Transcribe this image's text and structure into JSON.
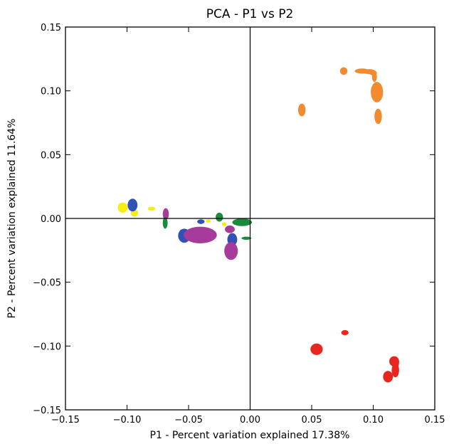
{
  "chart_data": {
    "type": "scatter",
    "title": "PCA - P1 vs P2",
    "xlabel": "P1 - Percent variation explained 17.38%",
    "ylabel": "P2 - Percent variation explained 11.64%",
    "xlim": [
      -0.15,
      0.15
    ],
    "ylim": [
      -0.15,
      0.15
    ],
    "x_ticks": [
      "−0.15",
      "−0.10",
      "−0.05",
      "0.00",
      "0.05",
      "0.10",
      "0.15"
    ],
    "y_ticks": [
      "0.15",
      "0.10",
      "0.05",
      "0.00",
      "−0.05",
      "−0.10",
      "−0.15"
    ],
    "x_tick_values": [
      -0.15,
      -0.1,
      -0.05,
      0.0,
      0.05,
      0.1,
      0.15
    ],
    "y_tick_values": [
      0.15,
      0.1,
      0.05,
      0.0,
      -0.05,
      -0.1,
      -0.15
    ],
    "grid": false,
    "zero_lines": true,
    "marker_shape": "ellipse",
    "series": [
      {
        "color": "#f28a2e",
        "points": [
          {
            "x": 0.076,
            "y": 0.1155,
            "rx": 0.003,
            "ry": 0.003
          },
          {
            "x": 0.091,
            "y": 0.1155,
            "rx": 0.006,
            "ry": 0.002
          },
          {
            "x": 0.097,
            "y": 0.115,
            "rx": 0.005,
            "ry": 0.002
          },
          {
            "x": 0.1,
            "y": 0.114,
            "rx": 0.003,
            "ry": 0.002
          },
          {
            "x": 0.101,
            "y": 0.111,
            "rx": 0.002,
            "ry": 0.004
          },
          {
            "x": 0.103,
            "y": 0.099,
            "rx": 0.005,
            "ry": 0.008
          },
          {
            "x": 0.104,
            "y": 0.08,
            "rx": 0.003,
            "ry": 0.006
          },
          {
            "x": 0.042,
            "y": 0.085,
            "rx": 0.003,
            "ry": 0.005
          }
        ]
      },
      {
        "color": "#e8261f",
        "points": [
          {
            "x": 0.054,
            "y": -0.1025,
            "rx": 0.005,
            "ry": 0.0045
          },
          {
            "x": 0.077,
            "y": -0.0895,
            "rx": 0.003,
            "ry": 0.002
          },
          {
            "x": 0.112,
            "y": -0.124,
            "rx": 0.004,
            "ry": 0.0045
          },
          {
            "x": 0.117,
            "y": -0.112,
            "rx": 0.004,
            "ry": 0.004
          },
          {
            "x": 0.118,
            "y": -0.119,
            "rx": 0.003,
            "ry": 0.0055
          },
          {
            "x": 0.119,
            "y": -0.113,
            "rx": 0.002,
            "ry": 0.004
          }
        ]
      },
      {
        "color": "#f5ee10",
        "points": [
          {
            "x": -0.1035,
            "y": 0.0085,
            "rx": 0.004,
            "ry": 0.004
          },
          {
            "x": -0.094,
            "y": 0.0043,
            "rx": 0.003,
            "ry": 0.003
          },
          {
            "x": -0.08,
            "y": 0.0077,
            "rx": 0.003,
            "ry": 0.0015
          },
          {
            "x": -0.034,
            "y": -0.002,
            "rx": 0.002,
            "ry": 0.0012
          },
          {
            "x": -0.021,
            "y": -0.0045,
            "rx": 0.002,
            "ry": 0.0015
          }
        ]
      },
      {
        "color": "#2f52b4",
        "points": [
          {
            "x": -0.0955,
            "y": 0.0105,
            "rx": 0.004,
            "ry": 0.005
          },
          {
            "x": -0.0535,
            "y": -0.0135,
            "rx": 0.005,
            "ry": 0.0055
          },
          {
            "x": -0.04,
            "y": -0.0025,
            "rx": 0.003,
            "ry": 0.0018
          },
          {
            "x": -0.0145,
            "y": -0.0165,
            "rx": 0.004,
            "ry": 0.005
          }
        ]
      },
      {
        "color": "#a63b9b",
        "points": [
          {
            "x": -0.0685,
            "y": 0.0035,
            "rx": 0.0025,
            "ry": 0.0045
          },
          {
            "x": -0.0405,
            "y": -0.013,
            "rx": 0.0135,
            "ry": 0.0065
          },
          {
            "x": -0.0165,
            "y": -0.0085,
            "rx": 0.004,
            "ry": 0.003
          },
          {
            "x": -0.0155,
            "y": -0.0255,
            "rx": 0.0055,
            "ry": 0.007
          }
        ]
      },
      {
        "color": "#1a8a3c",
        "points": [
          {
            "x": -0.069,
            "y": -0.0035,
            "rx": 0.002,
            "ry": 0.0045
          },
          {
            "x": -0.025,
            "y": 0.001,
            "rx": 0.003,
            "ry": 0.0035
          },
          {
            "x": -0.0065,
            "y": -0.003,
            "rx": 0.008,
            "ry": 0.003
          },
          {
            "x": -0.003,
            "y": -0.0155,
            "rx": 0.004,
            "ry": 0.0012
          }
        ]
      }
    ]
  }
}
